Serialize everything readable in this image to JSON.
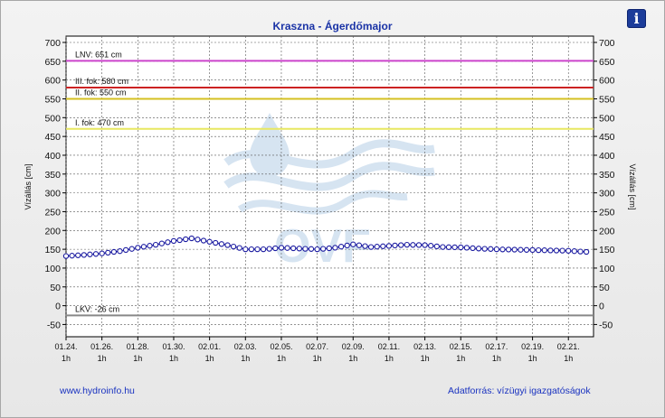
{
  "header": {
    "title": "Kraszna - Ágerdőmajor",
    "info_icon": "info-icon",
    "info_glyph": "i"
  },
  "footer": {
    "link": "www.hydroinfo.hu",
    "source": "Adatforrás: vízügyi igazgatóságok"
  },
  "watermark": {
    "text": "OVF",
    "icon": "water-drop-waves-logo"
  },
  "chart_data": {
    "type": "line",
    "title": "Kraszna - Ágerdőmajor",
    "ylabel": "Vízállás [cm]",
    "ylim": [
      -80,
      700
    ],
    "yticks": [
      700,
      650,
      600,
      550,
      500,
      450,
      400,
      350,
      300,
      250,
      200,
      150,
      100,
      50,
      0,
      -50
    ],
    "grid": true,
    "x_categories": [
      "01.24.",
      "01.26.",
      "01.28.",
      "01.30.",
      "02.01.",
      "02.03.",
      "02.05.",
      "02.07.",
      "02.09.",
      "02.11.",
      "02.13.",
      "02.15.",
      "02.17.",
      "02.19.",
      "02.21."
    ],
    "x_sub": "1h",
    "x_range_days": [
      0,
      29.4
    ],
    "thresholds": [
      {
        "label": "LNV: 651 cm",
        "value": 651,
        "color": "#cc44cc"
      },
      {
        "label": "III. fok: 580 cm",
        "value": 580,
        "color": "#cc2222"
      },
      {
        "label": "II. fok: 550 cm",
        "value": 550,
        "color": "#d4c020"
      },
      {
        "label": "I. fok: 470 cm",
        "value": 470,
        "color": "#e8e860"
      },
      {
        "label": "LKV: -26 cm",
        "value": -26,
        "color": "#888888"
      }
    ],
    "series": [
      {
        "color": "#1a1aa0",
        "points": [
          [
            0,
            132
          ],
          [
            1,
            135
          ],
          [
            2,
            139
          ],
          [
            3,
            145
          ],
          [
            4,
            154
          ],
          [
            5,
            162
          ],
          [
            6,
            172
          ],
          [
            7,
            179
          ],
          [
            8,
            170
          ],
          [
            9,
            161
          ],
          [
            10,
            150
          ],
          [
            11,
            150
          ],
          [
            12,
            154
          ],
          [
            13,
            152
          ],
          [
            14,
            150
          ],
          [
            15,
            154
          ],
          [
            16,
            163
          ],
          [
            17,
            156
          ],
          [
            18,
            159
          ],
          [
            19,
            162
          ],
          [
            20,
            161
          ],
          [
            21,
            156
          ],
          [
            22,
            155
          ],
          [
            23,
            152
          ],
          [
            24,
            150
          ],
          [
            25,
            149
          ],
          [
            26,
            148
          ],
          [
            27,
            147
          ],
          [
            28,
            146
          ],
          [
            29,
            143
          ]
        ]
      }
    ]
  }
}
